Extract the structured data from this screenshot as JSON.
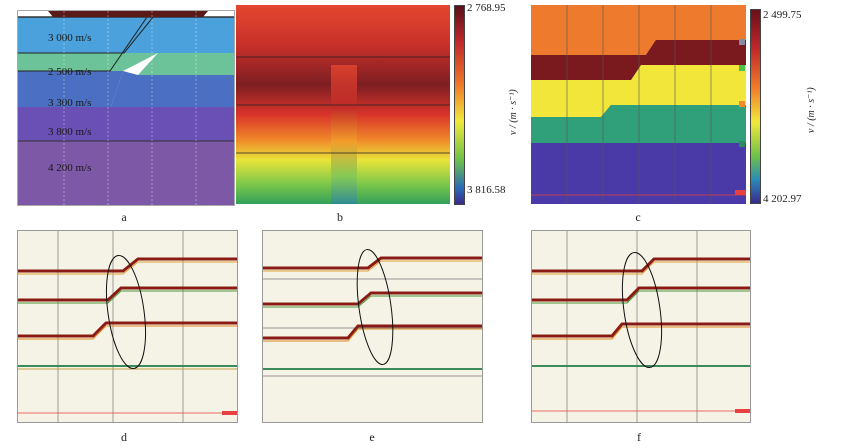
{
  "figure": {
    "panel_labels": [
      "a",
      "b",
      "c",
      "d",
      "e",
      "f"
    ]
  },
  "panel_a": {
    "layers": [
      {
        "label": "3 000 m/s",
        "color": "#4aa1dc"
      },
      {
        "label": "2 500 m/s",
        "color": "#6cc39a"
      },
      {
        "label": "3 300 m/s",
        "color": "#4b6fc2"
      },
      {
        "label": "3 800 m/s",
        "color": "#6a4fb4"
      },
      {
        "label": "4 200 m/s",
        "color": "#7d58a6"
      }
    ]
  },
  "colorbar_b": {
    "max_label": "2 768.95",
    "min_label": "3 816.58",
    "unit_label": "v / (m · s⁻¹)"
  },
  "colorbar_c": {
    "max_label": "2 499.75",
    "min_label": "4 202.97",
    "unit_label": "v / (m · s⁻¹)"
  },
  "colors": {
    "red": "#d93a2b",
    "darkred": "#7a1a1f",
    "yellow": "#f2e73a",
    "green": "#3aa36b",
    "purple": "#5b3fa8",
    "orange": "#ef7d2f",
    "seis_bg": "#f5f3e6"
  }
}
